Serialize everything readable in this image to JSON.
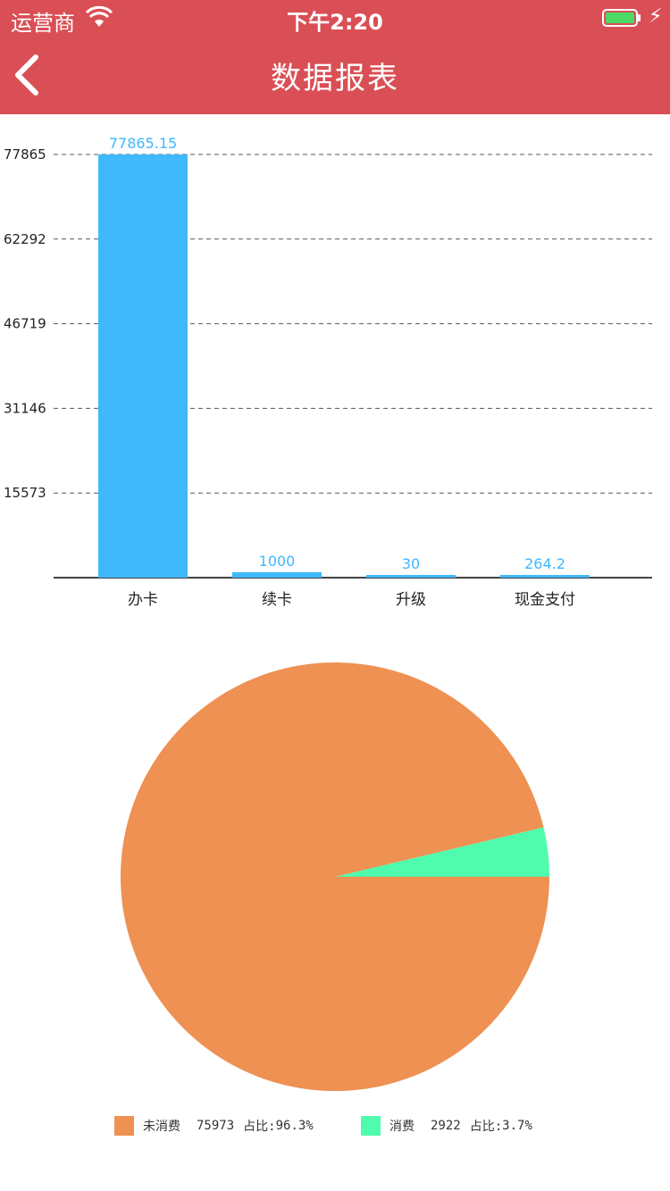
{
  "status_bar": {
    "carrier": "运营商",
    "time": "下午2:20"
  },
  "nav": {
    "title": "数据报表"
  },
  "icons": {
    "wifi": "wifi-icon",
    "battery": "battery-icon",
    "charging": "charging-bolt-icon",
    "back": "chevron-left-icon"
  },
  "colors": {
    "header": "#d94f55",
    "bar": "#3fb8fc",
    "bar_label": "#3fb8fc",
    "pie_unused": "#ee9152",
    "pie_used": "#4ffcad"
  },
  "chart_data": [
    {
      "type": "bar",
      "categories": [
        "办卡",
        "续卡",
        "升级",
        "现金支付"
      ],
      "values": [
        77865.15,
        1000,
        30,
        264.2
      ],
      "data_labels": [
        "77865.15",
        "1000",
        "30",
        "264.2"
      ],
      "y_ticks": [
        "15573",
        "31146",
        "46719",
        "62292",
        "77865"
      ],
      "ylim": [
        0,
        77865
      ],
      "grid": "dashed horizontal"
    },
    {
      "type": "pie",
      "slices": [
        {
          "name": "未消费",
          "value": 75973,
          "pct_label": "占比:",
          "pct": "96.3%"
        },
        {
          "name": "消费",
          "value": 2922,
          "pct_label": "占比:",
          "pct": "3.7%"
        }
      ],
      "legend": "bottom"
    }
  ]
}
